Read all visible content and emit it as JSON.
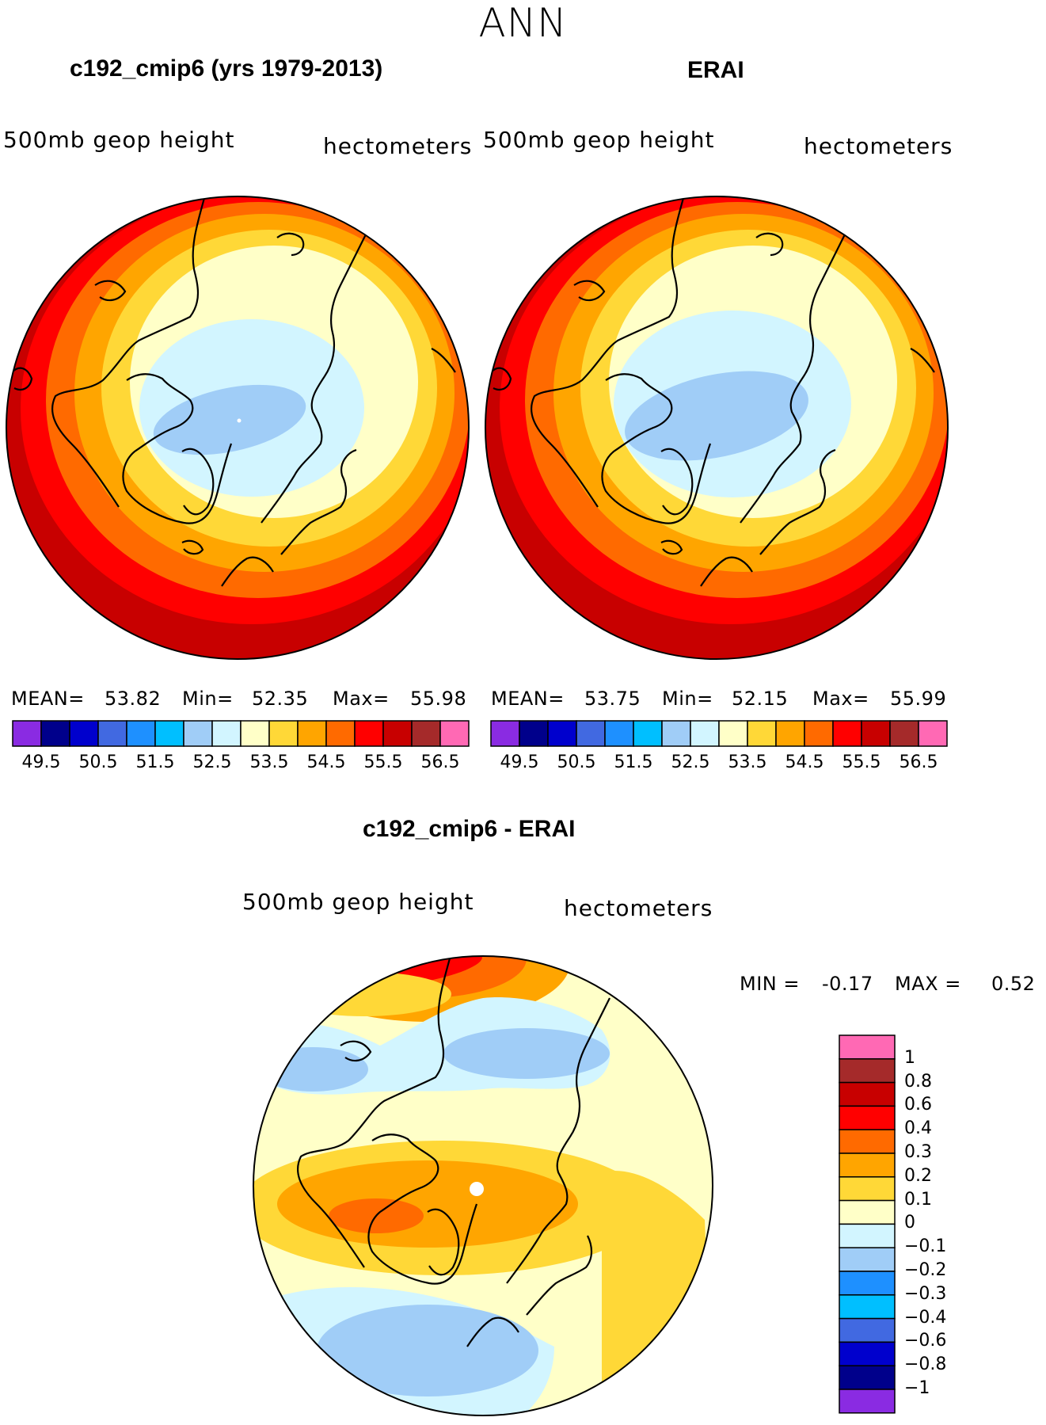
{
  "figure": {
    "main_title": "ANN",
    "left": {
      "title": "c192_cmip6 (yrs 1979-2013)",
      "variable": "500mb geop height",
      "units": "hectometers",
      "mean_label": "MEAN=",
      "mean": "53.82",
      "min_label": "Min=",
      "min": "52.35",
      "max_label": "Max=",
      "max": "55.98"
    },
    "right": {
      "title": "ERAI",
      "variable": "500mb geop height",
      "units": "hectometers",
      "mean_label": "MEAN=",
      "mean": "53.75",
      "min_label": "Min=",
      "min": "52.15",
      "max_label": "Max=",
      "max": "55.99"
    },
    "diff": {
      "title": "c192_cmip6 - ERAI",
      "variable": "500mb geop height",
      "units": "hectometers",
      "min_label": "MIN =",
      "min": "-0.17",
      "max_label": "MAX =",
      "max": "0.52"
    }
  },
  "chart_data": [
    {
      "type": "heatmap",
      "title": "c192_cmip6 (yrs 1979-2013)",
      "projection": "north polar stereographic",
      "variable": "500mb geop height (hectometers)",
      "stats": {
        "mean": 53.82,
        "min": 52.35,
        "max": 55.98
      },
      "colorbar_levels": [
        49.5,
        50,
        50.5,
        51,
        51.5,
        52,
        52.5,
        53,
        53.5,
        54,
        54.5,
        55,
        55.5,
        56,
        56.5
      ],
      "colorbar_tick_labels": [
        "49.5",
        "50.5",
        "51.5",
        "52.5",
        "53.5",
        "54.5",
        "55.5",
        "56.5"
      ],
      "colorbar_colors": [
        "#8a2be2",
        "#00008b",
        "#0000cd",
        "#4169e1",
        "#1e90ff",
        "#00bfff",
        "#a0cdf7",
        "#d2f5ff",
        "#ffffc8",
        "#ffd837",
        "#ffa500",
        "#ff6a00",
        "#ff0000",
        "#c80000",
        "#a52a2a",
        "#ff69b4"
      ]
    },
    {
      "type": "heatmap",
      "title": "ERAI",
      "projection": "north polar stereographic",
      "variable": "500mb geop height (hectometers)",
      "stats": {
        "mean": 53.75,
        "min": 52.15,
        "max": 55.99
      },
      "colorbar_levels": [
        49.5,
        50,
        50.5,
        51,
        51.5,
        52,
        52.5,
        53,
        53.5,
        54,
        54.5,
        55,
        55.5,
        56,
        56.5
      ],
      "colorbar_tick_labels": [
        "49.5",
        "50.5",
        "51.5",
        "52.5",
        "53.5",
        "54.5",
        "55.5",
        "56.5"
      ],
      "colorbar_colors": [
        "#8a2be2",
        "#00008b",
        "#0000cd",
        "#4169e1",
        "#1e90ff",
        "#00bfff",
        "#a0cdf7",
        "#d2f5ff",
        "#ffffc8",
        "#ffd837",
        "#ffa500",
        "#ff6a00",
        "#ff0000",
        "#c80000",
        "#a52a2a",
        "#ff69b4"
      ]
    },
    {
      "type": "heatmap",
      "title": "c192_cmip6 - ERAI",
      "projection": "north polar stereographic",
      "variable": "500mb geop height difference (hectometers)",
      "stats": {
        "min": -0.17,
        "max": 0.52
      },
      "colorbar_levels": [
        -1,
        -0.8,
        -0.6,
        -0.4,
        -0.3,
        -0.2,
        -0.1,
        0,
        0.1,
        0.2,
        0.3,
        0.4,
        0.6,
        0.8,
        1
      ],
      "colorbar_tick_labels": [
        "1",
        "0.8",
        "0.6",
        "0.4",
        "0.3",
        "0.2",
        "0.1",
        "0",
        "−0.1",
        "−0.2",
        "−0.3",
        "−0.4",
        "−0.6",
        "−0.8",
        "−1"
      ],
      "colorbar_colors_top_to_bottom": [
        "#ff69b4",
        "#a52a2a",
        "#c80000",
        "#ff0000",
        "#ff6a00",
        "#ffa500",
        "#ffd837",
        "#ffffc8",
        "#d2f5ff",
        "#a0cdf7",
        "#1e90ff",
        "#00bfff",
        "#4169e1",
        "#0000cd",
        "#00008b",
        "#8a2be2"
      ]
    }
  ]
}
